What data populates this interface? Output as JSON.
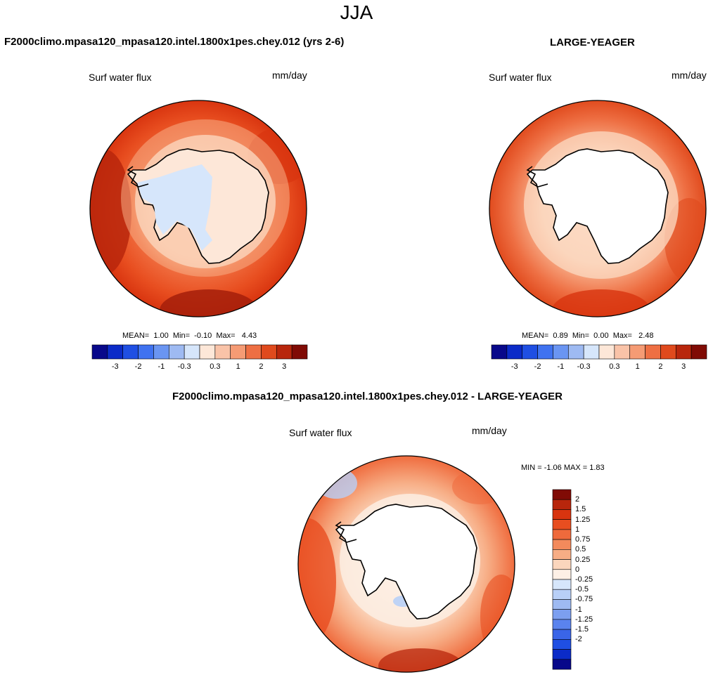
{
  "season": "JJA",
  "panels": [
    {
      "title": "F2000climo.mpasa120_mpasa120.intel.1800x1pes.chey.012 (yrs 2-6)",
      "variable": "Surf water flux",
      "units": "mm/day",
      "stats": {
        "mean_label": "MEAN=",
        "mean": "1.00",
        "min_label": "Min=",
        "min": "-0.10",
        "max_label": "Max=",
        "max": "4.43"
      }
    },
    {
      "title": "LARGE-YEAGER",
      "variable": "Surf water flux",
      "units": "mm/day",
      "stats": {
        "mean_label": "MEAN=",
        "mean": "0.89",
        "min_label": "Min=",
        "min": "0.00",
        "max_label": "Max=",
        "max": "2.48"
      }
    },
    {
      "title": "F2000climo.mpasa120_mpasa120.intel.1800x1pes.chey.012 - LARGE-YEAGER",
      "variable": "Surf water flux",
      "units": "mm/day",
      "range_text": "MIN =  -1.06 MAX =   1.83"
    }
  ],
  "colorbar_main": {
    "colors": [
      "#08088a",
      "#0b2bc8",
      "#1f4fe3",
      "#3f72f0",
      "#6a95f2",
      "#9ebaf2",
      "#d6e6fb",
      "#fde7d8",
      "#f9c3a8",
      "#f59b74",
      "#ee6f43",
      "#e04a1d",
      "#b8260c",
      "#800b05"
    ],
    "tick_labels": [
      "-3",
      "-2",
      "-1",
      "-0.3",
      "0.3",
      "1",
      "2",
      "3"
    ]
  },
  "colorbar_diff": {
    "colors": [
      "#800b05",
      "#b8260c",
      "#d8340f",
      "#e84e20",
      "#ef6a3c",
      "#f38a5c",
      "#f7ad85",
      "#fbd6bd",
      "#fdf0e6",
      "#d6e6fb",
      "#b8cff7",
      "#9ebaf2",
      "#7c9ff0",
      "#5a83ee",
      "#3a65e8",
      "#1f4fe3",
      "#0b2bc8",
      "#08088a"
    ],
    "tick_labels": [
      "2",
      "1.5",
      "1.25",
      "1",
      "0.75",
      "0.5",
      "0.25",
      "0",
      "-0.25",
      "-0.5",
      "-0.75",
      "-1",
      "-1.25",
      "-1.5",
      "-2"
    ]
  }
}
